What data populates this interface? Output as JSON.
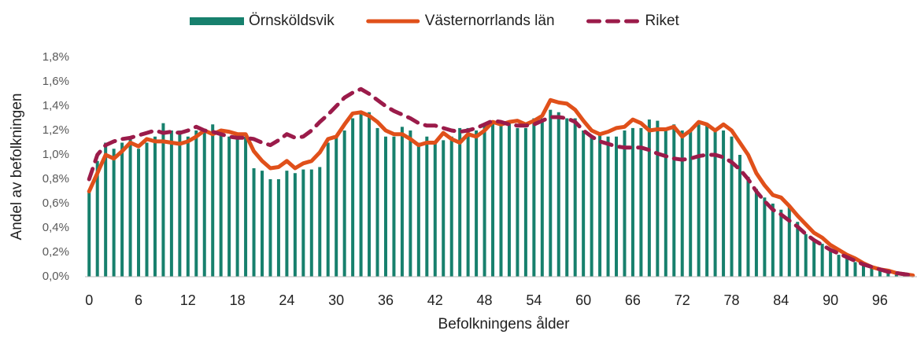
{
  "chart_data": {
    "type": "bar",
    "x_label": "Befolkningens ålder",
    "y_label": "Andel av befolkningen",
    "legend": "top",
    "categories": [
      "0",
      null,
      null,
      null,
      null,
      null,
      "6",
      null,
      null,
      null,
      null,
      null,
      "12",
      null,
      null,
      null,
      null,
      null,
      "18",
      null,
      null,
      null,
      null,
      null,
      "24",
      null,
      null,
      null,
      null,
      null,
      "30",
      null,
      null,
      null,
      null,
      null,
      "36",
      null,
      null,
      null,
      null,
      null,
      "42",
      null,
      null,
      null,
      null,
      null,
      "48",
      null,
      null,
      null,
      null,
      null,
      "54",
      null,
      null,
      null,
      null,
      null,
      "60",
      null,
      null,
      null,
      null,
      null,
      "66",
      null,
      null,
      null,
      null,
      null,
      "72",
      null,
      null,
      null,
      null,
      null,
      "78",
      null,
      null,
      null,
      null,
      null,
      "84",
      null,
      null,
      null,
      null,
      null,
      "90",
      null,
      null,
      null,
      null,
      null,
      "96",
      null,
      null,
      null,
      null
    ],
    "ylim": [
      0,
      1.8
    ],
    "yticks": [
      {
        "value": 0,
        "label": "0,0%"
      },
      {
        "value": 0.2,
        "label": "0,2%"
      },
      {
        "value": 0.4,
        "label": "0,4%"
      },
      {
        "value": 0.6,
        "label": "0,6%"
      },
      {
        "value": 0.8,
        "label": "0,8%"
      },
      {
        "value": 1.0,
        "label": "1,0%"
      },
      {
        "value": 1.2,
        "label": "1,2%"
      },
      {
        "value": 1.4,
        "label": "1,4%"
      },
      {
        "value": 1.6,
        "label": "1,6%"
      },
      {
        "value": 1.8,
        "label": "1,8%"
      }
    ],
    "series": [
      {
        "name": "Örnsköldsvik",
        "type": "bar",
        "color": "#17806d",
        "values": [
          0.7,
          0.95,
          1.1,
          1.05,
          1.1,
          1.15,
          1.05,
          1.1,
          1.15,
          1.26,
          1.2,
          1.2,
          1.15,
          1.2,
          1.2,
          1.25,
          1.2,
          1.15,
          1.15,
          1.15,
          0.89,
          0.87,
          0.8,
          0.8,
          0.87,
          0.85,
          0.88,
          0.88,
          0.9,
          1.1,
          1.15,
          1.2,
          1.3,
          1.35,
          1.35,
          1.22,
          1.15,
          1.15,
          1.23,
          1.2,
          1.1,
          1.15,
          1.1,
          1.12,
          1.15,
          1.22,
          1.22,
          1.2,
          1.25,
          1.27,
          1.27,
          1.27,
          1.22,
          1.22,
          1.3,
          1.3,
          1.37,
          1.35,
          1.3,
          1.3,
          1.2,
          1.15,
          1.18,
          1.15,
          1.15,
          1.2,
          1.22,
          1.22,
          1.29,
          1.28,
          1.22,
          1.25,
          1.2,
          1.2,
          1.25,
          1.25,
          1.2,
          1.2,
          1.15,
          1.0,
          0.82,
          0.72,
          0.65,
          0.6,
          0.55,
          0.57,
          0.45,
          0.35,
          0.3,
          0.27,
          0.22,
          0.18,
          0.15,
          0.12,
          0.1,
          0.08,
          0.06,
          0.04,
          0.03,
          0.02,
          0.01
        ]
      },
      {
        "name": "Västernorrlands län",
        "type": "line",
        "color": "#e0501a",
        "values": [
          0.7,
          0.85,
          1.0,
          0.97,
          1.03,
          1.1,
          1.07,
          1.13,
          1.11,
          1.11,
          1.1,
          1.09,
          1.11,
          1.15,
          1.2,
          1.17,
          1.2,
          1.19,
          1.17,
          1.17,
          1.03,
          0.95,
          0.89,
          0.9,
          0.95,
          0.89,
          0.93,
          0.95,
          1.02,
          1.13,
          1.15,
          1.25,
          1.34,
          1.35,
          1.32,
          1.27,
          1.2,
          1.17,
          1.17,
          1.13,
          1.08,
          1.1,
          1.1,
          1.18,
          1.13,
          1.1,
          1.17,
          1.15,
          1.2,
          1.27,
          1.25,
          1.27,
          1.28,
          1.25,
          1.28,
          1.32,
          1.45,
          1.43,
          1.42,
          1.37,
          1.28,
          1.2,
          1.17,
          1.19,
          1.22,
          1.23,
          1.29,
          1.26,
          1.2,
          1.21,
          1.21,
          1.23,
          1.15,
          1.2,
          1.27,
          1.25,
          1.2,
          1.25,
          1.2,
          1.1,
          1.0,
          0.85,
          0.75,
          0.67,
          0.65,
          0.58,
          0.5,
          0.43,
          0.36,
          0.32,
          0.26,
          0.22,
          0.18,
          0.15,
          0.11,
          0.08,
          0.06,
          0.05,
          0.03,
          0.02,
          0.01
        ]
      },
      {
        "name": "Riket",
        "type": "line",
        "dashed": true,
        "color": "#9b1b4a",
        "values": [
          0.8,
          1.0,
          1.08,
          1.11,
          1.13,
          1.14,
          1.16,
          1.18,
          1.2,
          1.18,
          1.19,
          1.18,
          1.2,
          1.23,
          1.2,
          1.19,
          1.17,
          1.15,
          1.14,
          1.14,
          1.13,
          1.1,
          1.08,
          1.12,
          1.17,
          1.14,
          1.15,
          1.2,
          1.27,
          1.33,
          1.4,
          1.47,
          1.51,
          1.54,
          1.5,
          1.45,
          1.4,
          1.36,
          1.33,
          1.3,
          1.26,
          1.24,
          1.24,
          1.22,
          1.2,
          1.19,
          1.2,
          1.22,
          1.25,
          1.28,
          1.27,
          1.25,
          1.24,
          1.24,
          1.25,
          1.28,
          1.31,
          1.31,
          1.3,
          1.27,
          1.2,
          1.15,
          1.11,
          1.09,
          1.07,
          1.06,
          1.06,
          1.06,
          1.04,
          1.01,
          0.99,
          0.97,
          0.96,
          0.97,
          0.99,
          1.0,
          1.0,
          0.98,
          0.94,
          0.88,
          0.8,
          0.7,
          0.62,
          0.55,
          0.51,
          0.46,
          0.41,
          0.35,
          0.3,
          0.26,
          0.22,
          0.19,
          0.16,
          0.13,
          0.1,
          0.08,
          0.06,
          0.04,
          0.03,
          0.02,
          0.01
        ]
      }
    ]
  }
}
